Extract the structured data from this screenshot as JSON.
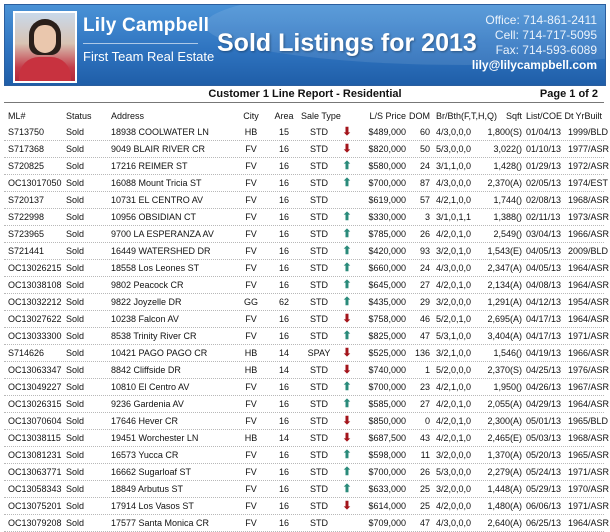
{
  "banner": {
    "agent_name": "Lily Campbell",
    "company": "First Team Real Estate",
    "title": "Sold Listings for 2013",
    "office": "Office: 714-861-2411",
    "cell": "Cell: 714-717-5095",
    "fax": "Fax: 714-593-6089",
    "email": "lily@lilycampbell.com"
  },
  "report": {
    "title": "Customer 1 Line Report - Residential",
    "page": "Page 1 of 2"
  },
  "table": {
    "headers": {
      "ml": "ML#",
      "status": "Status",
      "address": "Address",
      "city": "City",
      "area": "Area",
      "sale_type": "Sale Type",
      "price": "L/S Price",
      "dom": "DOM",
      "brbth": "Br/Bth(F,T,H,Q)",
      "sqft": "Sqft",
      "date": "List/COE Dt",
      "yrbuilt": "YrBuilt"
    },
    "rows": [
      {
        "ml": "S713750",
        "status": "Sold",
        "address": "18938 COOLWATER LN",
        "city": "HB",
        "area": "15",
        "type": "STD",
        "dir": "down",
        "price": "$489,000",
        "dom": "60",
        "br": "4/3,0,0,0",
        "sqft": "1,800(S)",
        "date": "01/04/13",
        "yb": "1999/BLD"
      },
      {
        "ml": "S717368",
        "status": "Sold",
        "address": "9049 BLAIR RIVER CR",
        "city": "FV",
        "area": "16",
        "type": "STD",
        "dir": "down",
        "price": "$820,000",
        "dom": "50",
        "br": "5/3,0,0,0",
        "sqft": "3,022()",
        "date": "01/10/13",
        "yb": "1977/ASR"
      },
      {
        "ml": "S720825",
        "status": "Sold",
        "address": "17216 REIMER ST",
        "city": "FV",
        "area": "16",
        "type": "STD",
        "dir": "up",
        "price": "$580,000",
        "dom": "24",
        "br": "3/1,1,0,0",
        "sqft": "1,428()",
        "date": "01/29/13",
        "yb": "1972/ASR"
      },
      {
        "ml": "OC13017050",
        "status": "Sold",
        "address": "16088 Mount Tricia ST",
        "city": "FV",
        "area": "16",
        "type": "STD",
        "dir": "up",
        "price": "$700,000",
        "dom": "87",
        "br": "4/3,0,0,0",
        "sqft": "2,370(A)",
        "date": "02/05/13",
        "yb": "1974/EST"
      },
      {
        "ml": "S720137",
        "status": "Sold",
        "address": "10731 EL CENTRO AV",
        "city": "FV",
        "area": "16",
        "type": "STD",
        "dir": "",
        "price": "$619,000",
        "dom": "57",
        "br": "4/2,1,0,0",
        "sqft": "1,744()",
        "date": "02/08/13",
        "yb": "1968/ASR"
      },
      {
        "ml": "S722998",
        "status": "Sold",
        "address": "10956 OBSIDIAN CT",
        "city": "FV",
        "area": "16",
        "type": "STD",
        "dir": "up",
        "price": "$330,000",
        "dom": "3",
        "br": "3/1,0,1,1",
        "sqft": "1,388()",
        "date": "02/11/13",
        "yb": "1973/ASR"
      },
      {
        "ml": "S723965",
        "status": "Sold",
        "address": "9700 LA ESPERANZA AV",
        "city": "FV",
        "area": "16",
        "type": "STD",
        "dir": "up",
        "price": "$785,000",
        "dom": "26",
        "br": "4/2,0,1,0",
        "sqft": "2,549()",
        "date": "03/04/13",
        "yb": "1966/ASR"
      },
      {
        "ml": "S721441",
        "status": "Sold",
        "address": "16449 WATERSHED DR",
        "city": "FV",
        "area": "16",
        "type": "STD",
        "dir": "up",
        "price": "$420,000",
        "dom": "93",
        "br": "3/2,0,1,0",
        "sqft": "1,543(E)",
        "date": "04/05/13",
        "yb": "2009/BLD"
      },
      {
        "ml": "OC13026215",
        "status": "Sold",
        "address": "18558 Los Leones ST",
        "city": "FV",
        "area": "16",
        "type": "STD",
        "dir": "up",
        "price": "$660,000",
        "dom": "24",
        "br": "4/3,0,0,0",
        "sqft": "2,347(A)",
        "date": "04/05/13",
        "yb": "1964/ASR"
      },
      {
        "ml": "OC13038108",
        "status": "Sold",
        "address": "9802 Peacock CR",
        "city": "FV",
        "area": "16",
        "type": "STD",
        "dir": "up",
        "price": "$645,000",
        "dom": "27",
        "br": "4/2,0,1,0",
        "sqft": "2,134(A)",
        "date": "04/08/13",
        "yb": "1964/ASR"
      },
      {
        "ml": "OC13032212",
        "status": "Sold",
        "address": "9822 Joyzelle DR",
        "city": "GG",
        "area": "62",
        "type": "STD",
        "dir": "up",
        "price": "$435,000",
        "dom": "29",
        "br": "3/2,0,0,0",
        "sqft": "1,291(A)",
        "date": "04/12/13",
        "yb": "1954/ASR"
      },
      {
        "ml": "OC13027622",
        "status": "Sold",
        "address": "10238 Falcon AV",
        "city": "FV",
        "area": "16",
        "type": "STD",
        "dir": "down",
        "price": "$758,000",
        "dom": "46",
        "br": "5/2,0,1,0",
        "sqft": "2,695(A)",
        "date": "04/17/13",
        "yb": "1964/ASR"
      },
      {
        "ml": "OC13033300",
        "status": "Sold",
        "address": "8538 Trinity River CR",
        "city": "FV",
        "area": "16",
        "type": "STD",
        "dir": "up",
        "price": "$825,000",
        "dom": "47",
        "br": "5/3,1,0,0",
        "sqft": "3,404(A)",
        "date": "04/17/13",
        "yb": "1971/ASR"
      },
      {
        "ml": "S714626",
        "status": "Sold",
        "address": "10421 PAGO PAGO CR",
        "city": "HB",
        "area": "14",
        "type": "SPAY",
        "dir": "down",
        "price": "$525,000",
        "dom": "136",
        "br": "3/2,1,0,0",
        "sqft": "1,546()",
        "date": "04/19/13",
        "yb": "1966/ASR"
      },
      {
        "ml": "OC13063347",
        "status": "Sold",
        "address": "8842 Cliffside DR",
        "city": "HB",
        "area": "14",
        "type": "STD",
        "dir": "down",
        "price": "$740,000",
        "dom": "1",
        "br": "5/2,0,0,0",
        "sqft": "2,370(S)",
        "date": "04/25/13",
        "yb": "1976/ASR"
      },
      {
        "ml": "OC13049227",
        "status": "Sold",
        "address": "10810 El Centro AV",
        "city": "FV",
        "area": "16",
        "type": "STD",
        "dir": "up",
        "price": "$700,000",
        "dom": "23",
        "br": "4/2,1,0,0",
        "sqft": "1,950()",
        "date": "04/26/13",
        "yb": "1967/ASR"
      },
      {
        "ml": "OC13026315",
        "status": "Sold",
        "address": "9236 Gardenia AV",
        "city": "FV",
        "area": "16",
        "type": "STD",
        "dir": "up",
        "price": "$585,000",
        "dom": "27",
        "br": "4/2,0,1,0",
        "sqft": "2,055(A)",
        "date": "04/29/13",
        "yb": "1964/ASR"
      },
      {
        "ml": "OC13070604",
        "status": "Sold",
        "address": "17646 Hever CR",
        "city": "FV",
        "area": "16",
        "type": "STD",
        "dir": "down",
        "price": "$850,000",
        "dom": "0",
        "br": "4/2,0,1,0",
        "sqft": "2,300(A)",
        "date": "05/01/13",
        "yb": "1965/BLD"
      },
      {
        "ml": "OC13038115",
        "status": "Sold",
        "address": "19451 Worchester LN",
        "city": "HB",
        "area": "14",
        "type": "STD",
        "dir": "down",
        "price": "$687,500",
        "dom": "43",
        "br": "4/2,0,1,0",
        "sqft": "2,465(E)",
        "date": "05/03/13",
        "yb": "1968/ASR"
      },
      {
        "ml": "OC13081231",
        "status": "Sold",
        "address": "16573 Yucca CR",
        "city": "FV",
        "area": "16",
        "type": "STD",
        "dir": "up",
        "price": "$598,000",
        "dom": "11",
        "br": "3/2,0,0,0",
        "sqft": "1,370(A)",
        "date": "05/20/13",
        "yb": "1965/ASR"
      },
      {
        "ml": "OC13063771",
        "status": "Sold",
        "address": "16662 Sugarloaf ST",
        "city": "FV",
        "area": "16",
        "type": "STD",
        "dir": "up",
        "price": "$700,000",
        "dom": "26",
        "br": "5/3,0,0,0",
        "sqft": "2,279(A)",
        "date": "05/24/13",
        "yb": "1971/ASR"
      },
      {
        "ml": "OC13058343",
        "status": "Sold",
        "address": "18849 Arbutus ST",
        "city": "FV",
        "area": "16",
        "type": "STD",
        "dir": "up",
        "price": "$633,000",
        "dom": "25",
        "br": "3/2,0,0,0",
        "sqft": "1,448(A)",
        "date": "05/29/13",
        "yb": "1970/ASR"
      },
      {
        "ml": "OC13075201",
        "status": "Sold",
        "address": "17914 Los Vasos ST",
        "city": "FV",
        "area": "16",
        "type": "STD",
        "dir": "down",
        "price": "$614,000",
        "dom": "25",
        "br": "4/2,0,0,0",
        "sqft": "1,480(A)",
        "date": "06/06/13",
        "yb": "1971/ASR"
      },
      {
        "ml": "OC13079208",
        "status": "Sold",
        "address": "17577 Santa Monica CR",
        "city": "FV",
        "area": "16",
        "type": "STD",
        "dir": "",
        "price": "$709,000",
        "dom": "47",
        "br": "4/3,0,0,0",
        "sqft": "2,640(A)",
        "date": "06/25/13",
        "yb": "1964/ASR"
      }
    ]
  },
  "colors": {
    "banner": "#2f74c0",
    "arrow_up": "#2a8a7a",
    "arrow_down": "#a3141b"
  },
  "icons": {
    "up": "⬆",
    "down": "⬇"
  }
}
